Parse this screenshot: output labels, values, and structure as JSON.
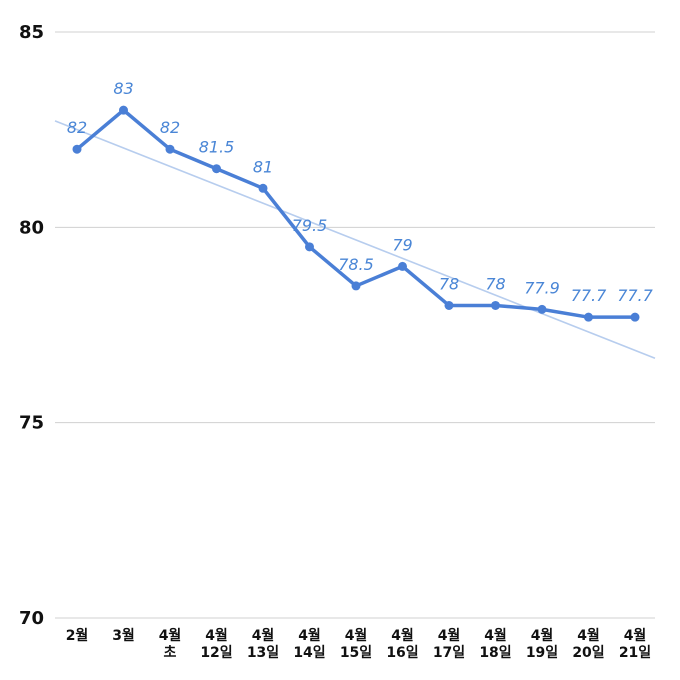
{
  "chart_data": {
    "type": "line",
    "categories": [
      [
        "2월"
      ],
      [
        "3월"
      ],
      [
        "4월",
        "초"
      ],
      [
        "4월",
        "12일"
      ],
      [
        "4월",
        "13일"
      ],
      [
        "4월",
        "14일"
      ],
      [
        "4월",
        "15일"
      ],
      [
        "4월",
        "16일"
      ],
      [
        "4월",
        "17일"
      ],
      [
        "4월",
        "18일"
      ],
      [
        "4월",
        "19일"
      ],
      [
        "4월",
        "20일"
      ],
      [
        "4월",
        "21일"
      ]
    ],
    "values": [
      82,
      83,
      82,
      81.5,
      81,
      79.5,
      78.5,
      79,
      78,
      78,
      77.9,
      77.7,
      77.7
    ],
    "data_labels": [
      "82",
      "83",
      "82",
      "81.5",
      "81",
      "79.5",
      "78.5",
      "79",
      "78",
      "78",
      "77.9",
      "77.7",
      "77.7"
    ],
    "yticks": [
      "70",
      "75",
      "80",
      "85"
    ],
    "ylim": [
      70,
      85
    ],
    "grid": true,
    "trendline": "linear",
    "title": "",
    "xlabel": "",
    "ylabel": "",
    "colors": {
      "line": "#4a7fd6",
      "trend": "#b7cdee",
      "grid": "#d0d0d0",
      "label": "#4a86d6"
    }
  }
}
